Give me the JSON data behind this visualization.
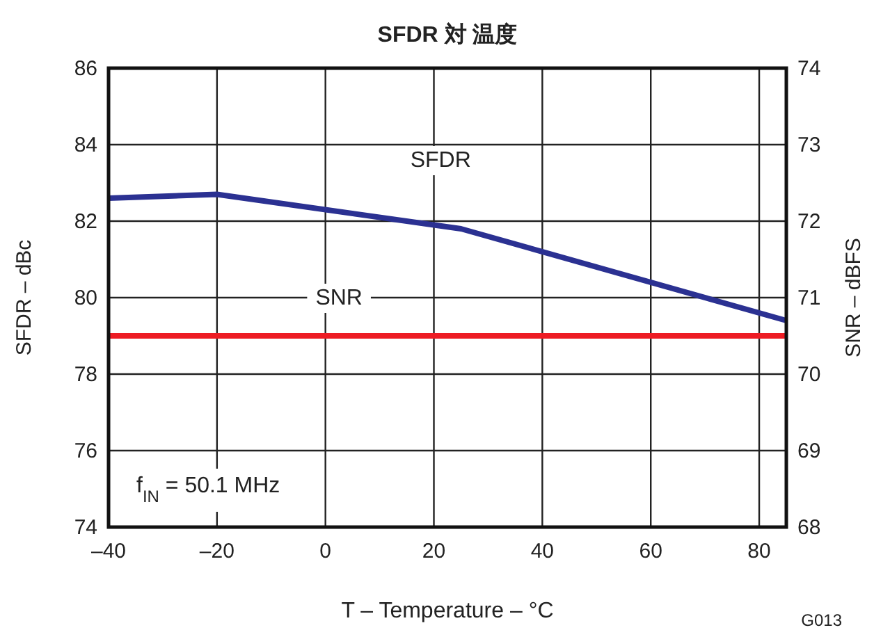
{
  "chart_data": {
    "type": "line",
    "title": "SFDR 対 温度",
    "xlabel": "T – Temperature – °C",
    "ylabel": "SFDR – dBc",
    "y2label": "SNR – dBFS",
    "x": [
      -40,
      -20,
      25,
      85
    ],
    "series": [
      {
        "name": "SFDR",
        "color": "#2b3192",
        "values": [
          82.6,
          82.7,
          81.8,
          79.4
        ]
      },
      {
        "name": "SNR",
        "color": "#ed1c24",
        "axis": "y2",
        "values": [
          70.5,
          70.5,
          70.5,
          70.5
        ]
      }
    ],
    "xlim": [
      -40,
      85
    ],
    "xticks": [
      {
        "value": -40,
        "label": "–40"
      },
      {
        "value": -20,
        "label": "–20"
      },
      0,
      20,
      40,
      60,
      80
    ],
    "ylim": [
      74,
      86
    ],
    "yticks": [
      74,
      76,
      78,
      80,
      82,
      84,
      86
    ],
    "y2lim": [
      68,
      74
    ],
    "y2ticks": [
      68,
      69,
      70,
      71,
      72,
      73,
      74
    ],
    "grid": true,
    "legend": false,
    "marker": "none",
    "line_style": "solid",
    "annotations": [
      "f$_{IN}$ = 50.1 MHz",
      "G013"
    ]
  }
}
